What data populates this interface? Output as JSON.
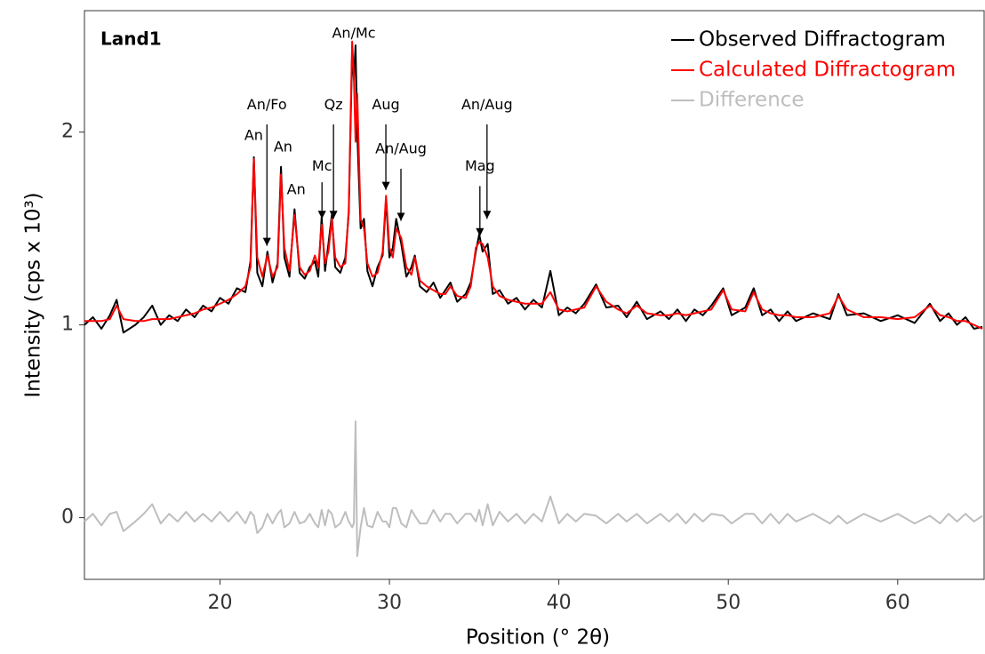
{
  "chart_data": {
    "type": "line",
    "panel_label": "Land1",
    "x_label": "Position (° 2θ)",
    "y_label": "Intensity (cps x 10³)",
    "xlim": [
      12,
      65.1
    ],
    "ylim": [
      -0.32,
      2.63
    ],
    "xticks": [
      20,
      30,
      40,
      50,
      60
    ],
    "yticks": [
      0,
      1,
      2
    ],
    "grid": false,
    "legend": "top-right",
    "x": [
      12,
      12.5,
      13,
      13.5,
      13.9,
      14.3,
      15,
      15.5,
      16,
      16.5,
      17,
      17.5,
      18,
      18.5,
      19,
      19.5,
      20,
      20.5,
      21,
      21.5,
      21.8,
      22.0,
      22.2,
      22.5,
      22.8,
      23.1,
      23.4,
      23.6,
      23.8,
      24.1,
      24.4,
      24.7,
      25.0,
      25.3,
      25.6,
      25.8,
      26.0,
      26.2,
      26.4,
      26.6,
      26.8,
      27.1,
      27.4,
      27.6,
      27.8,
      27.9,
      28.0,
      28.1,
      28.3,
      28.5,
      28.7,
      29.0,
      29.3,
      29.6,
      29.8,
      30.0,
      30.2,
      30.4,
      30.7,
      31.0,
      31.3,
      31.5,
      31.8,
      32.2,
      32.6,
      33.0,
      33.3,
      33.6,
      34.0,
      34.5,
      34.8,
      35.1,
      35.3,
      35.5,
      35.8,
      36.1,
      36.5,
      37,
      37.5,
      38,
      38.5,
      39,
      39.5,
      40,
      40.5,
      41,
      41.5,
      42.2,
      42.8,
      43.5,
      44,
      44.6,
      45.2,
      46,
      46.5,
      47,
      47.5,
      48,
      48.5,
      49,
      49.7,
      50.2,
      51,
      51.5,
      52,
      52.5,
      53,
      53.5,
      54,
      55,
      56,
      56.5,
      57,
      58,
      59,
      60,
      61,
      61.9,
      62.5,
      63,
      63.5,
      64,
      64.5,
      65
    ],
    "series": [
      {
        "name": "Difference",
        "color": "#bebebe",
        "values": [
          -0.02,
          0.02,
          -0.04,
          0.02,
          0.03,
          -0.07,
          -0.02,
          0.02,
          0.07,
          -0.03,
          0.02,
          -0.02,
          0.03,
          -0.02,
          0.02,
          -0.02,
          0.03,
          -0.02,
          0.03,
          -0.03,
          0.03,
          0.01,
          -0.08,
          -0.05,
          0.02,
          -0.03,
          0.02,
          0.04,
          -0.05,
          -0.03,
          0.03,
          -0.03,
          -0.02,
          0.02,
          -0.03,
          -0.05,
          0.04,
          -0.04,
          0.04,
          0.02,
          -0.05,
          -0.03,
          0.03,
          -0.02,
          -0.05,
          -0.03,
          0.5,
          -0.2,
          -0.05,
          0.05,
          -0.04,
          -0.05,
          0.03,
          -0.02,
          -0.02,
          -0.05,
          0.05,
          0.05,
          -0.03,
          -0.05,
          0.04,
          0.01,
          -0.03,
          -0.03,
          0.04,
          -0.02,
          0.02,
          0.02,
          -0.03,
          0.02,
          0.02,
          -0.02,
          0.04,
          -0.04,
          0.07,
          -0.04,
          0.03,
          -0.02,
          0.02,
          -0.03,
          0.02,
          -0.02,
          0.11,
          -0.03,
          0.02,
          -0.02,
          0.02,
          0.01,
          -0.03,
          0.02,
          -0.02,
          0.02,
          -0.03,
          0.02,
          -0.02,
          0.02,
          -0.03,
          0.02,
          -0.02,
          0.02,
          0.01,
          -0.03,
          0.02,
          0.02,
          -0.03,
          0.02,
          -0.03,
          0.02,
          -0.02,
          0.02,
          -0.03,
          0.01,
          -0.03,
          0.02,
          -0.02,
          0.02,
          -0.03,
          0.01,
          -0.03,
          0.02,
          -0.02,
          0.02,
          -0.02,
          0.01
        ]
      },
      {
        "name": "Observed Diffractogram",
        "color": "#000000",
        "values": [
          1.0,
          1.04,
          0.98,
          1.05,
          1.13,
          0.96,
          1.0,
          1.04,
          1.1,
          1.0,
          1.05,
          1.02,
          1.08,
          1.04,
          1.1,
          1.07,
          1.14,
          1.11,
          1.19,
          1.17,
          1.33,
          1.87,
          1.27,
          1.2,
          1.38,
          1.22,
          1.32,
          1.82,
          1.35,
          1.25,
          1.6,
          1.27,
          1.24,
          1.3,
          1.33,
          1.25,
          1.56,
          1.28,
          1.42,
          1.57,
          1.3,
          1.27,
          1.35,
          1.58,
          2.42,
          2.27,
          2.45,
          2.0,
          1.5,
          1.55,
          1.28,
          1.2,
          1.3,
          1.36,
          1.65,
          1.35,
          1.4,
          1.55,
          1.42,
          1.25,
          1.3,
          1.36,
          1.2,
          1.17,
          1.22,
          1.14,
          1.18,
          1.22,
          1.12,
          1.16,
          1.22,
          1.38,
          1.47,
          1.38,
          1.42,
          1.16,
          1.18,
          1.11,
          1.14,
          1.08,
          1.13,
          1.09,
          1.28,
          1.05,
          1.09,
          1.06,
          1.11,
          1.21,
          1.09,
          1.1,
          1.04,
          1.12,
          1.03,
          1.07,
          1.03,
          1.08,
          1.02,
          1.08,
          1.05,
          1.1,
          1.19,
          1.05,
          1.09,
          1.19,
          1.05,
          1.08,
          1.02,
          1.07,
          1.02,
          1.06,
          1.03,
          1.16,
          1.05,
          1.06,
          1.02,
          1.05,
          1.01,
          1.11,
          1.02,
          1.06,
          1.0,
          1.04,
          0.98,
          0.99
        ]
      },
      {
        "name": "Calculated Diffractogram",
        "color": "#ff0000",
        "values": [
          1.02,
          1.02,
          1.02,
          1.03,
          1.1,
          1.03,
          1.02,
          1.02,
          1.03,
          1.03,
          1.03,
          1.04,
          1.05,
          1.06,
          1.08,
          1.09,
          1.11,
          1.13,
          1.16,
          1.2,
          1.3,
          1.86,
          1.35,
          1.25,
          1.36,
          1.25,
          1.3,
          1.78,
          1.4,
          1.28,
          1.57,
          1.3,
          1.26,
          1.28,
          1.36,
          1.3,
          1.52,
          1.32,
          1.38,
          1.55,
          1.35,
          1.3,
          1.32,
          1.6,
          2.47,
          2.3,
          1.95,
          2.2,
          1.55,
          1.5,
          1.32,
          1.25,
          1.27,
          1.38,
          1.67,
          1.4,
          1.35,
          1.5,
          1.45,
          1.3,
          1.26,
          1.35,
          1.23,
          1.2,
          1.18,
          1.16,
          1.16,
          1.2,
          1.15,
          1.14,
          1.2,
          1.4,
          1.43,
          1.42,
          1.35,
          1.2,
          1.15,
          1.13,
          1.12,
          1.11,
          1.11,
          1.11,
          1.17,
          1.08,
          1.07,
          1.08,
          1.09,
          1.2,
          1.12,
          1.08,
          1.06,
          1.1,
          1.06,
          1.05,
          1.05,
          1.06,
          1.05,
          1.06,
          1.07,
          1.08,
          1.18,
          1.08,
          1.07,
          1.17,
          1.08,
          1.06,
          1.05,
          1.05,
          1.04,
          1.04,
          1.06,
          1.15,
          1.08,
          1.04,
          1.04,
          1.03,
          1.04,
          1.1,
          1.05,
          1.04,
          1.02,
          1.02,
          1.0,
          0.98
        ]
      }
    ],
    "annotations": [
      {
        "text": "An",
        "x": 21.99,
        "y": 1.98
      },
      {
        "text": "An/Fo",
        "x": 22.77,
        "y": 2.14,
        "arrow": [
          2.04,
          1.41
        ]
      },
      {
        "text": "An",
        "x": 23.72,
        "y": 1.92
      },
      {
        "text": "An",
        "x": 24.5,
        "y": 1.7
      },
      {
        "text": "Mc",
        "x": 26.02,
        "y": 1.82,
        "arrow": [
          1.74,
          1.55
        ]
      },
      {
        "text": "Qz",
        "x": 26.7,
        "y": 2.14,
        "arrow": [
          2.04,
          1.55
        ]
      },
      {
        "text": "An/Mc",
        "x": 27.9,
        "y": 2.51
      },
      {
        "text": "Aug",
        "x": 29.79,
        "y": 2.14,
        "arrow": [
          2.04,
          1.7
        ]
      },
      {
        "text": "An/Aug",
        "x": 30.68,
        "y": 1.91,
        "arrow": [
          1.81,
          1.54
        ]
      },
      {
        "text": "Mag",
        "x": 35.34,
        "y": 1.82,
        "arrow": [
          1.72,
          1.46
        ]
      },
      {
        "text": "An/Aug",
        "x": 35.76,
        "y": 2.14,
        "arrow": [
          2.04,
          1.55
        ]
      }
    ]
  }
}
